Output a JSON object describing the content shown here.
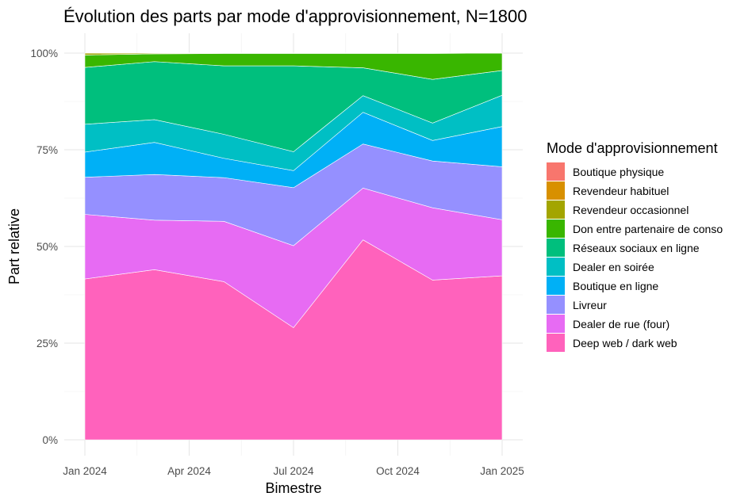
{
  "chart_data": {
    "type": "area",
    "stacked": "percent",
    "title": "Évolution des parts par mode d'approvisionnement, N=1800",
    "xlabel": "Bimestre",
    "ylabel": "Part relative",
    "x": [
      "2024-01",
      "2024-03",
      "2024-05",
      "2024-07",
      "2024-09",
      "2024-11",
      "2025-01"
    ],
    "x_ticks": [
      {
        "date": "2024-01",
        "label": "Jan 2024"
      },
      {
        "date": "2024-04",
        "label": "Apr 2024"
      },
      {
        "date": "2024-07",
        "label": "Jul 2024"
      },
      {
        "date": "2024-10",
        "label": "Oct 2024"
      },
      {
        "date": "2025-01",
        "label": "Jan 2025"
      }
    ],
    "y_ticks": [
      {
        "value": 0,
        "label": "0%"
      },
      {
        "value": 25,
        "label": "25%"
      },
      {
        "value": 50,
        "label": "50%"
      },
      {
        "value": 75,
        "label": "75%"
      },
      {
        "value": 100,
        "label": "100%"
      }
    ],
    "ylim": [
      0,
      100
    ],
    "grid": true,
    "legend_position": "right",
    "legend_title": "Mode d'approvisionnement",
    "series": [
      {
        "name": "Boutique physique",
        "color": "#F8766D",
        "values": [
          0,
          0,
          0,
          0,
          0,
          0,
          0
        ]
      },
      {
        "name": "Revendeur habituel",
        "color": "#D89000",
        "values": [
          0,
          0,
          0,
          0,
          0,
          0,
          0
        ]
      },
      {
        "name": "Revendeur occasionnel",
        "color": "#A3A500",
        "values": [
          0.5,
          0.2,
          0.1,
          0.1,
          0.1,
          0.1,
          0
        ]
      },
      {
        "name": "Don entre partenaire de conso",
        "color": "#39B600",
        "values": [
          3.2,
          2.0,
          3.2,
          3.2,
          3.7,
          6.7,
          4.5
        ]
      },
      {
        "name": "Réseaux sociaux en ligne",
        "color": "#00BF7D",
        "values": [
          14.7,
          15.0,
          17.7,
          22.2,
          7.2,
          11.3,
          6.4
        ]
      },
      {
        "name": "Dealer en soirée",
        "color": "#00BFC4",
        "values": [
          7.2,
          5.9,
          6.2,
          4.9,
          4.3,
          4.5,
          8.1
        ]
      },
      {
        "name": "Boutique en ligne",
        "color": "#00B0F6",
        "values": [
          6.5,
          8.3,
          5.0,
          4.4,
          8.2,
          5.3,
          10.4
        ]
      },
      {
        "name": "Livreur",
        "color": "#9590FF",
        "values": [
          9.6,
          11.8,
          11.3,
          15.0,
          11.4,
          12.1,
          13.7
        ]
      },
      {
        "name": "Dealer de rue (four)",
        "color": "#E76BF3",
        "values": [
          16.7,
          12.8,
          15.6,
          21.2,
          13.4,
          18.7,
          14.5
        ]
      },
      {
        "name": "Deep web / dark web",
        "color": "#FF62BC",
        "values": [
          41.6,
          44.0,
          40.9,
          29.0,
          51.7,
          41.3,
          42.4
        ]
      }
    ]
  }
}
